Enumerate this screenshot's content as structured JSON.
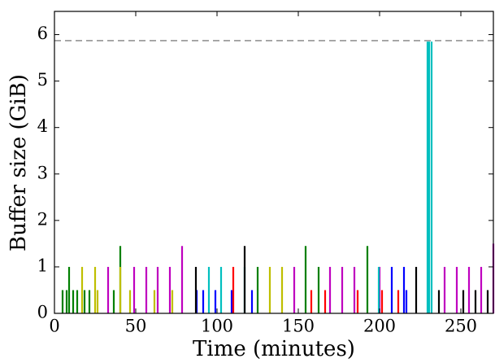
{
  "chart_data": {
    "type": "spike",
    "xlabel": "Time (minutes)",
    "ylabel": "Buffer size (GiB)",
    "xlim": [
      0,
      270
    ],
    "ylim": [
      0,
      6.5
    ],
    "xticks": [
      0,
      50,
      100,
      150,
      200,
      250
    ],
    "yticks": [
      0,
      1,
      2,
      3,
      4,
      5,
      6
    ],
    "reference_line": {
      "value": 5.87,
      "color": "#808080"
    },
    "series": [
      {
        "color": "#008000",
        "x": [
          5,
          7.5,
          9,
          11.5,
          14,
          18.5,
          21.5,
          36.5,
          40.5,
          125,
          154.5,
          162.5,
          192.5
        ],
        "values": [
          0.5,
          0.5,
          1.0,
          0.5,
          0.5,
          0.5,
          0.5,
          0.5,
          1.45,
          1.0,
          1.45,
          1.0,
          1.45
        ]
      },
      {
        "color": "#bfbf00",
        "x": [
          17,
          25,
          26.5,
          40.5,
          46.5,
          61.5,
          72.5,
          132.5,
          140
        ],
        "values": [
          1.0,
          1.0,
          0.5,
          1.0,
          0.5,
          0.5,
          0.5,
          1.0,
          1.0
        ]
      },
      {
        "color": "#bf00bf",
        "x": [
          33,
          49,
          56.5,
          63.5,
          71,
          78.5,
          147.5,
          169.5,
          177,
          184.5,
          200,
          240,
          247.5,
          255,
          262.5,
          270
        ],
        "values": [
          1.0,
          1.0,
          1.0,
          1.0,
          1.0,
          1.45,
          1.0,
          1.0,
          1.0,
          1.0,
          1.0,
          1.0,
          1.0,
          1.0,
          1.0,
          1.5
        ]
      },
      {
        "color": "#00bfbf",
        "x": [
          95,
          102.5,
          117,
          199.5,
          229.5,
          230.5,
          232
        ],
        "values": [
          1.0,
          1.0,
          1.0,
          1.0,
          5.85,
          5.85,
          5.85
        ]
      },
      {
        "color": "#0000ff",
        "x": [
          87.5,
          91.5,
          99,
          109,
          121.5,
          207.5,
          215,
          216.5
        ],
        "values": [
          0.5,
          0.5,
          0.5,
          0.5,
          0.5,
          1.0,
          1.0,
          0.5
        ]
      },
      {
        "color": "#ff0000",
        "x": [
          110,
          158,
          166.5,
          186.5,
          201.5,
          211.5
        ],
        "values": [
          1.0,
          0.5,
          0.5,
          0.5,
          0.5,
          0.5
        ]
      },
      {
        "color": "#000000",
        "x": [
          87,
          117,
          222.5,
          236.5,
          251.5,
          259,
          266.5
        ],
        "values": [
          1.0,
          1.45,
          1.0,
          0.5,
          0.5,
          0.5,
          0.5
        ]
      }
    ]
  }
}
